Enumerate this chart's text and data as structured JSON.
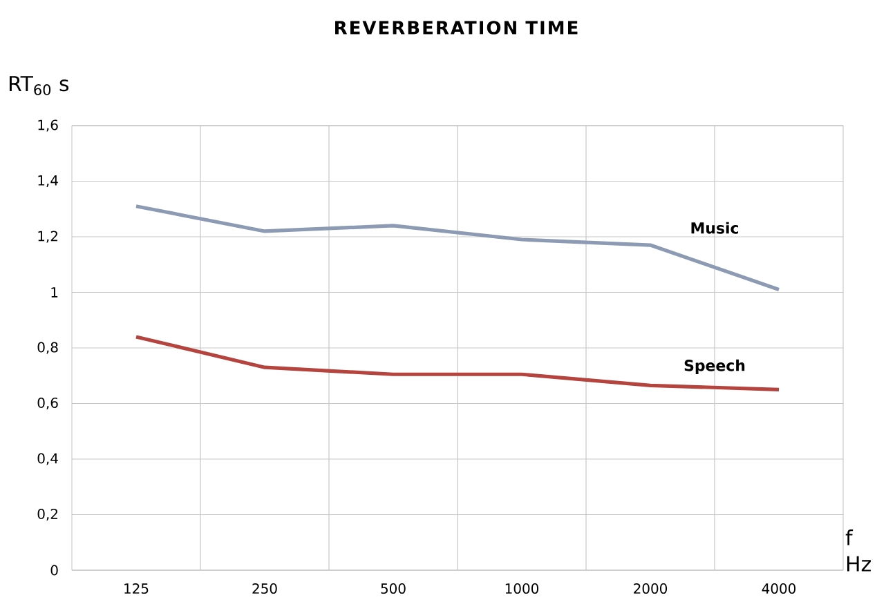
{
  "chart_data": {
    "type": "line",
    "title": "REVERBERATION TIME",
    "ylabel": "RT$_{60}$ s",
    "xlabel": "f Hz",
    "categories": [
      "125",
      "250",
      "500",
      "1000",
      "2000",
      "4000"
    ],
    "series": [
      {
        "name": "Music",
        "color": "#8c9bb3",
        "values": [
          1.31,
          1.22,
          1.24,
          1.19,
          1.17,
          1.01
        ]
      },
      {
        "name": "Speech",
        "color": "#b5443e",
        "values": [
          0.84,
          0.73,
          0.705,
          0.705,
          0.665,
          0.65
        ]
      }
    ],
    "ylim": [
      0,
      1.6
    ],
    "yticks": [
      0,
      {
        "value": 0.2,
        "label": "0,2"
      },
      {
        "value": 0.4,
        "label": "0,4"
      },
      {
        "value": 0.6,
        "label": "0,6"
      },
      {
        "value": 0.8,
        "label": "0,8"
      },
      1,
      {
        "value": 1.2,
        "label": "1,2"
      },
      {
        "value": 1.4,
        "label": "1,4"
      },
      {
        "value": 1.6,
        "label": "1,6"
      }
    ],
    "grid": true,
    "legend": false,
    "marker": "none",
    "line_style": "solid"
  }
}
